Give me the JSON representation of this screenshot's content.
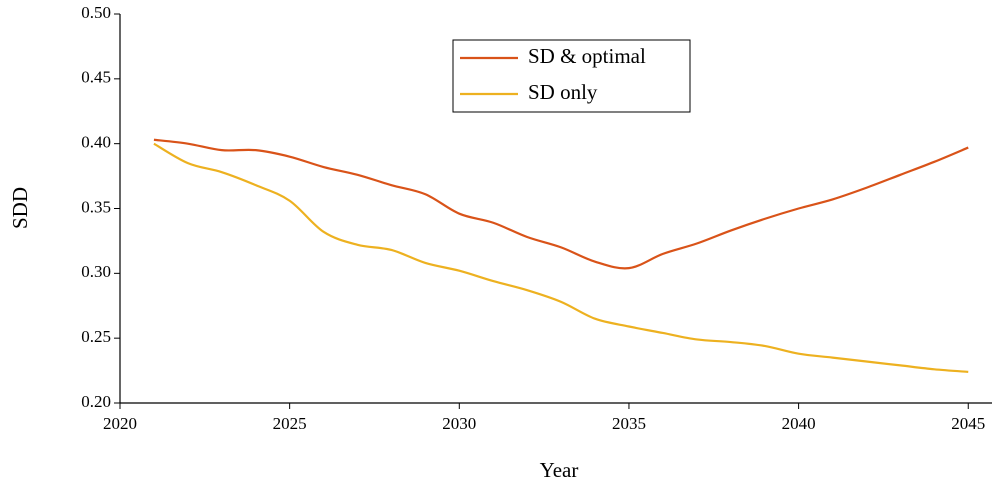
{
  "chart_data": {
    "type": "line",
    "x_label": "Year",
    "y_label": "SDD",
    "x": [
      2021,
      2022,
      2023,
      2024,
      2025,
      2026,
      2027,
      2028,
      2029,
      2030,
      2031,
      2032,
      2033,
      2034,
      2035,
      2036,
      2037,
      2038,
      2039,
      2040,
      2041,
      2042,
      2043,
      2044,
      2045
    ],
    "series": [
      {
        "name": "SD & optimal",
        "color": "#d95319",
        "values": [
          0.403,
          0.4,
          0.395,
          0.395,
          0.39,
          0.382,
          0.376,
          0.368,
          0.361,
          0.346,
          0.339,
          0.328,
          0.32,
          0.309,
          0.304,
          0.315,
          0.323,
          0.333,
          0.342,
          0.35,
          0.357,
          0.366,
          0.376,
          0.386,
          0.397
        ]
      },
      {
        "name": "SD only",
        "color": "#edb120",
        "values": [
          0.4,
          0.385,
          0.378,
          0.368,
          0.356,
          0.332,
          0.322,
          0.318,
          0.308,
          0.302,
          0.294,
          0.287,
          0.278,
          0.265,
          0.259,
          0.254,
          0.249,
          0.247,
          0.244,
          0.238,
          0.235,
          0.232,
          0.229,
          0.226,
          0.224
        ]
      }
    ],
    "xlim": [
      2020,
      2045.7
    ],
    "xticks": [
      2020,
      2025,
      2030,
      2035,
      2040,
      2045
    ],
    "ylim": [
      0.2,
      0.5
    ],
    "yticks": [
      {
        "value": 0.2,
        "label": "0.20"
      },
      {
        "value": 0.25,
        "label": "0.25"
      },
      {
        "value": 0.3,
        "label": "0.30"
      },
      {
        "value": 0.35,
        "label": "0.35"
      },
      {
        "value": 0.4,
        "label": "0.40"
      },
      {
        "value": 0.45,
        "label": "0.45"
      },
      {
        "value": 0.5,
        "label": "0.50"
      }
    ],
    "grid": false,
    "legend_position": "top-center"
  }
}
